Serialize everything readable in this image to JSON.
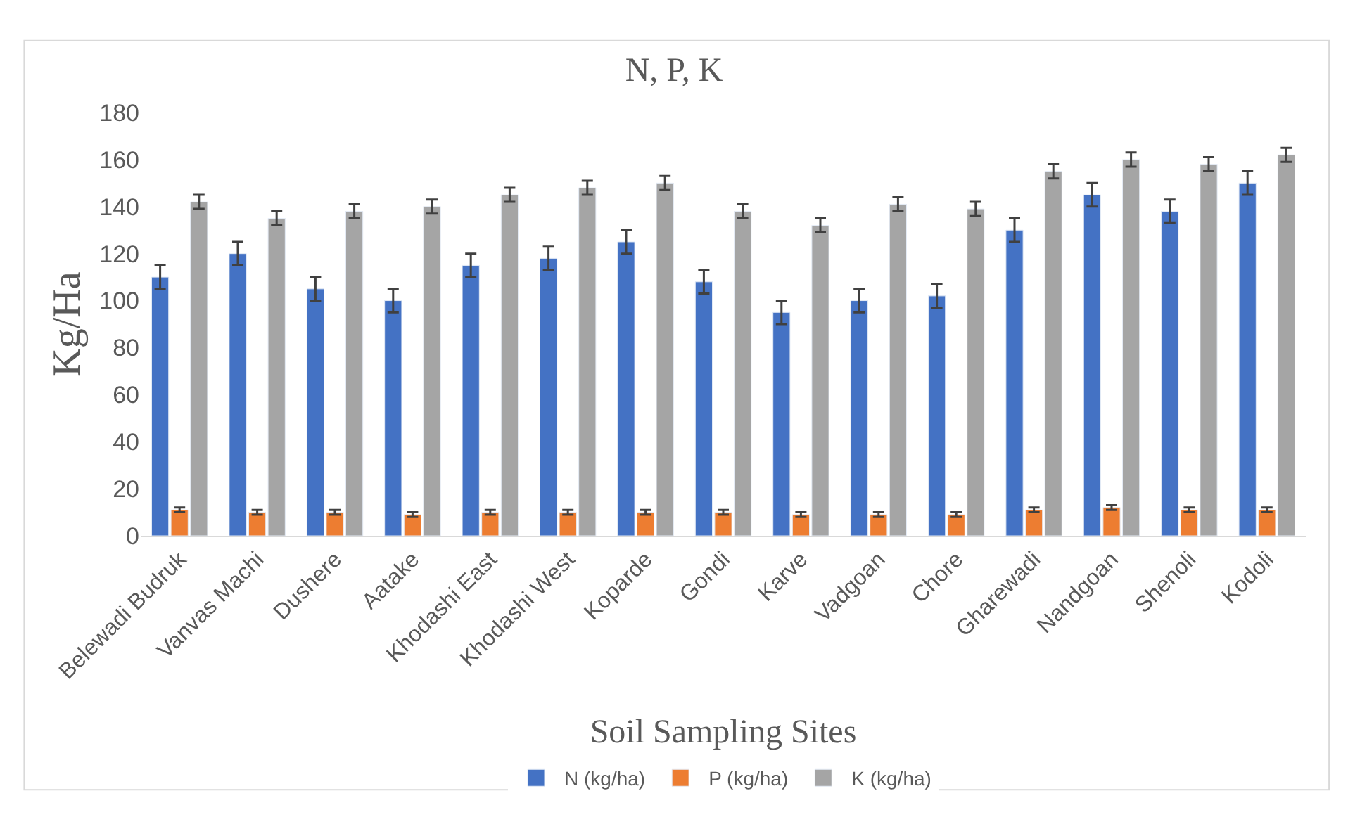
{
  "chart_data": {
    "type": "bar",
    "title": "N, P, K",
    "xlabel": "Soil Sampling Sites",
    "ylabel": "Kg/Ha",
    "categories": [
      "Belewadi Budruk",
      "Vanvas Machi",
      "Dushere",
      "Aatake",
      "Khodashi East",
      "Khodashi West",
      "Koparde",
      "Gondi",
      "Karve",
      "Vadgoan",
      "Chore",
      "Gharewadi",
      "Nandgoan",
      "Shenoli",
      "Kodoli"
    ],
    "series": [
      {
        "name": "N (kg/ha)",
        "color": "#4472c4",
        "values": [
          110,
          120,
          105,
          100,
          115,
          118,
          125,
          108,
          95,
          100,
          102,
          130,
          145,
          138,
          150
        ],
        "errors": [
          5,
          5,
          5,
          5,
          5,
          5,
          5,
          5,
          5,
          5,
          5,
          5,
          5,
          5,
          5
        ]
      },
      {
        "name": "P (kg/ha)",
        "color": "#ed7d31",
        "values": [
          11,
          10,
          10,
          9,
          10,
          10,
          10,
          10,
          9,
          9,
          9,
          11,
          12,
          11,
          11
        ],
        "errors": [
          1,
          1,
          1,
          1,
          1,
          1,
          1,
          1,
          1,
          1,
          1,
          1,
          1,
          1,
          1
        ]
      },
      {
        "name": "K (kg/ha)",
        "color": "#a5a5a5",
        "values": [
          142,
          135,
          138,
          140,
          145,
          148,
          150,
          138,
          132,
          141,
          139,
          155,
          160,
          158,
          162
        ],
        "errors": [
          3,
          3,
          3,
          3,
          3,
          3,
          3,
          3,
          3,
          3,
          3,
          3,
          3,
          3,
          3
        ]
      }
    ],
    "ylim": [
      0,
      180
    ],
    "yticks": [
      0,
      20,
      40,
      60,
      80,
      100,
      120,
      140,
      160,
      180
    ],
    "grid": false,
    "legend": "bottom"
  }
}
